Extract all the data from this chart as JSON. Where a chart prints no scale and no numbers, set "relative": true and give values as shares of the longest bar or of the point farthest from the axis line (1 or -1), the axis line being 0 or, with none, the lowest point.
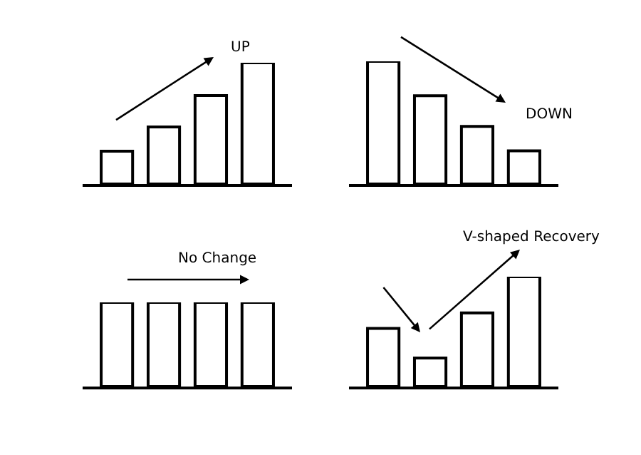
{
  "chart_data": [
    {
      "type": "bar",
      "relative": true,
      "categories": [
        null,
        null,
        null,
        null
      ],
      "values": [
        0.27,
        0.47,
        0.73,
        1
      ],
      "color": "#ffffff",
      "annotations": [
        "UP"
      ]
    },
    {
      "type": "bar",
      "relative": true,
      "categories": [
        null,
        null,
        null,
        null
      ],
      "values": [
        1,
        0.72,
        0.47,
        0.27
      ],
      "color": "#ffffff",
      "annotations": [
        "DOWN"
      ]
    },
    {
      "type": "bar",
      "relative": true,
      "categories": [
        null,
        null,
        null,
        null
      ],
      "values": [
        1,
        1,
        1,
        1
      ],
      "color": "#ffffff",
      "annotations": [
        "No Change"
      ]
    },
    {
      "type": "bar",
      "relative": true,
      "categories": [
        null,
        null,
        null,
        null
      ],
      "values": [
        0.53,
        0.26,
        0.67,
        1
      ],
      "color": "#ffffff",
      "annotations": [
        "V-shaped Recovery"
      ]
    }
  ]
}
